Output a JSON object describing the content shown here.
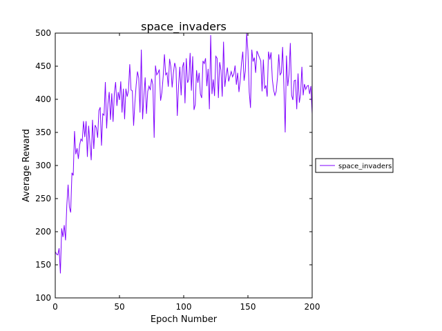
{
  "chart_data": {
    "type": "line",
    "title": "space_invaders",
    "xlabel": "Epoch Number",
    "ylabel": "Average Reward",
    "xlim": [
      0,
      200
    ],
    "ylim": [
      100,
      500
    ],
    "xticks": [
      0,
      50,
      100,
      150,
      200
    ],
    "yticks": [
      100,
      150,
      200,
      250,
      300,
      350,
      400,
      450,
      500
    ],
    "grid": false,
    "legend_position": "right, outside plot",
    "series": [
      {
        "name": "space_invaders",
        "color": "#7f00ff",
        "x": [
          0,
          1,
          2,
          3,
          4,
          5,
          6,
          7,
          8,
          9,
          10,
          11,
          12,
          13,
          14,
          15,
          16,
          17,
          18,
          19,
          20,
          21,
          22,
          23,
          24,
          25,
          26,
          27,
          28,
          29,
          30,
          31,
          32,
          33,
          34,
          35,
          36,
          37,
          38,
          39,
          40,
          41,
          42,
          43,
          44,
          45,
          46,
          47,
          48,
          49,
          50,
          51,
          52,
          53,
          54,
          55,
          56,
          57,
          58,
          59,
          60,
          61,
          62,
          63,
          64,
          65,
          66,
          67,
          68,
          69,
          70,
          71,
          72,
          73,
          74,
          75,
          76,
          77,
          78,
          79,
          80,
          81,
          82,
          83,
          84,
          85,
          86,
          87,
          88,
          89,
          90,
          91,
          92,
          93,
          94,
          95,
          96,
          97,
          98,
          99,
          100,
          101,
          102,
          103,
          104,
          105,
          106,
          107,
          108,
          109,
          110,
          111,
          112,
          113,
          114,
          115,
          116,
          117,
          118,
          119,
          120,
          121,
          122,
          123,
          124,
          125,
          126,
          127,
          128,
          129,
          130,
          131,
          132,
          133,
          134,
          135,
          136,
          137,
          138,
          139,
          140,
          141,
          142,
          143,
          144,
          145,
          146,
          147,
          148,
          149,
          150,
          151,
          152,
          153,
          154,
          155,
          156,
          157,
          158,
          159,
          160,
          161,
          162,
          163,
          164,
          165,
          166,
          167,
          168,
          169,
          170,
          171,
          172,
          173,
          174,
          175,
          176,
          177,
          178,
          179,
          180,
          181,
          182,
          183,
          184,
          185,
          186,
          187,
          188,
          189,
          190,
          191,
          192,
          193,
          194,
          195,
          196,
          197,
          198,
          199,
          200
        ],
        "y": [
          170,
          166,
          165,
          175,
          137,
          205,
          192,
          210,
          187,
          240,
          271,
          237,
          229,
          289,
          285,
          352,
          317,
          326,
          310,
          331,
          340,
          337,
          367,
          343,
          367,
          313,
          360,
          333,
          308,
          369,
          325,
          361,
          357,
          342,
          383,
          388,
          330,
          378,
          376,
          426,
          356,
          393,
          411,
          369,
          409,
          366,
          409,
          426,
          390,
          411,
          399,
          427,
          380,
          416,
          370,
          416,
          404,
          413,
          453,
          414,
          413,
          360,
          395,
          422,
          442,
          432,
          380,
          475,
          370,
          405,
          433,
          378,
          412,
          420,
          414,
          431,
          422,
          342,
          451,
          437,
          440,
          445,
          398,
          410,
          434,
          468,
          437,
          440,
          419,
          461,
          449,
          418,
          440,
          455,
          447,
          375,
          421,
          449,
          406,
          448,
          456,
          394,
          462,
          425,
          430,
          470,
          413,
          465,
          384,
          392,
          444,
          425,
          440,
          408,
          402,
          458,
          454,
          462,
          420,
          446,
          385,
          497,
          408,
          430,
          405,
          465,
          462,
          402,
          456,
          444,
          404,
          487,
          419,
          436,
          448,
          427,
          435,
          442,
          434,
          438,
          451,
          422,
          440,
          411,
          429,
          455,
          472,
          428,
          443,
          500,
          473,
          411,
          387,
          475,
          457,
          463,
          440,
          473,
          468,
          463,
          458,
          412,
          460,
          416,
          421,
          404,
          472,
          460,
          471,
          430,
          414,
          406,
          412,
          433,
          468,
          437,
          440,
          479,
          418,
          350,
          466,
          420,
          438,
          485,
          406,
          399,
          428,
          429,
          385,
          439,
          395,
          408,
          449,
          406,
          423,
          415,
          420,
          421,
          408,
          420,
          378
        ]
      }
    ]
  }
}
